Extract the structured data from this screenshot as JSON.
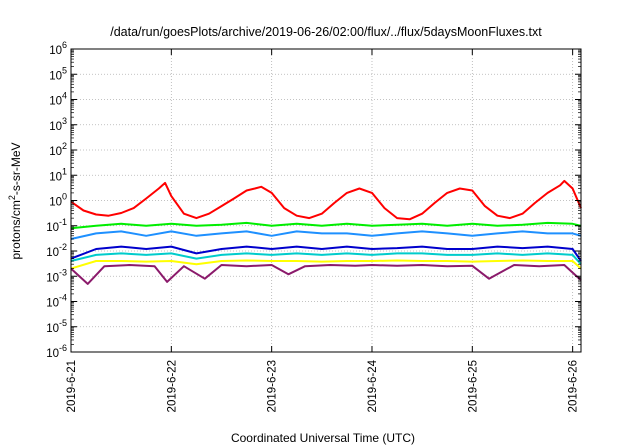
{
  "chart_data": {
    "type": "line",
    "title": "/data/run/goesPlots/archive/2019-06-26/02:00/flux/../flux/5daysMoonFluxes.txt",
    "xlabel": "Coordinated Universal Time (UTC)",
    "ylabel_parts": [
      "protons/cm",
      "2",
      "-s-sr-MeV"
    ],
    "y_scale": "log",
    "ylim": [
      1e-06,
      1000000.0
    ],
    "y_ticks": [
      {
        "base": "10",
        "exp": "-6"
      },
      {
        "base": "10",
        "exp": "-5"
      },
      {
        "base": "10",
        "exp": "-4"
      },
      {
        "base": "10",
        "exp": "-3"
      },
      {
        "base": "10",
        "exp": "-2"
      },
      {
        "base": "10",
        "exp": "-1"
      },
      {
        "base": "10",
        "exp": "0"
      },
      {
        "base": "10",
        "exp": "1"
      },
      {
        "base": "10",
        "exp": "2"
      },
      {
        "base": "10",
        "exp": "3"
      },
      {
        "base": "10",
        "exp": "4"
      },
      {
        "base": "10",
        "exp": "5"
      },
      {
        "base": "10",
        "exp": "6"
      }
    ],
    "x_ticks": [
      "2019-6-21",
      "2019-6-22",
      "2019-6-23",
      "2019-6-24",
      "2019-6-25",
      "2019-6-26"
    ],
    "xlim": [
      "2019-06-21T00:00",
      "2019-06-26T02:00"
    ],
    "grid": true,
    "legend": "none",
    "series": [
      {
        "color": "#ff0000",
        "points": [
          [
            "2019-06-21T00:00",
            0.9
          ],
          [
            "2019-06-21T03:00",
            0.4
          ],
          [
            "2019-06-21T06:00",
            0.28
          ],
          [
            "2019-06-21T09:00",
            0.25
          ],
          [
            "2019-06-21T12:00",
            0.32
          ],
          [
            "2019-06-21T15:00",
            0.5
          ],
          [
            "2019-06-21T18:00",
            1.2
          ],
          [
            "2019-06-21T21:00",
            3.0
          ],
          [
            "2019-06-21T22:30",
            5.0
          ],
          [
            "2019-06-22T00:00",
            1.5
          ],
          [
            "2019-06-22T03:00",
            0.3
          ],
          [
            "2019-06-22T06:00",
            0.2
          ],
          [
            "2019-06-22T09:00",
            0.3
          ],
          [
            "2019-06-22T12:00",
            0.6
          ],
          [
            "2019-06-22T15:00",
            1.2
          ],
          [
            "2019-06-22T18:00",
            2.5
          ],
          [
            "2019-06-22T20:00",
            3.0
          ],
          [
            "2019-06-22T21:30",
            3.5
          ],
          [
            "2019-06-23T00:00",
            2.0
          ],
          [
            "2019-06-23T03:00",
            0.5
          ],
          [
            "2019-06-23T06:00",
            0.25
          ],
          [
            "2019-06-23T09:00",
            0.2
          ],
          [
            "2019-06-23T12:00",
            0.3
          ],
          [
            "2019-06-23T15:00",
            0.8
          ],
          [
            "2019-06-23T18:00",
            2.0
          ],
          [
            "2019-06-23T21:00",
            3.0
          ],
          [
            "2019-06-24T00:00",
            2.0
          ],
          [
            "2019-06-24T03:00",
            0.5
          ],
          [
            "2019-06-24T06:00",
            0.2
          ],
          [
            "2019-06-24T09:00",
            0.18
          ],
          [
            "2019-06-24T12:00",
            0.3
          ],
          [
            "2019-06-24T15:00",
            0.8
          ],
          [
            "2019-06-24T18:00",
            2.0
          ],
          [
            "2019-06-24T21:00",
            3.0
          ],
          [
            "2019-06-25T00:00",
            2.5
          ],
          [
            "2019-06-25T03:00",
            0.6
          ],
          [
            "2019-06-25T06:00",
            0.25
          ],
          [
            "2019-06-25T09:00",
            0.2
          ],
          [
            "2019-06-25T12:00",
            0.3
          ],
          [
            "2019-06-25T15:00",
            0.8
          ],
          [
            "2019-06-25T18:00",
            2.0
          ],
          [
            "2019-06-25T21:00",
            4.0
          ],
          [
            "2019-06-25T22:00",
            6.0
          ],
          [
            "2019-06-26T00:00",
            3.0
          ],
          [
            "2019-06-26T02:00",
            0.5
          ]
        ]
      },
      {
        "color": "#00ee00",
        "points": [
          [
            "2019-06-21T00:00",
            0.08
          ],
          [
            "2019-06-21T06:00",
            0.1
          ],
          [
            "2019-06-21T12:00",
            0.12
          ],
          [
            "2019-06-21T18:00",
            0.1
          ],
          [
            "2019-06-22T00:00",
            0.12
          ],
          [
            "2019-06-22T06:00",
            0.1
          ],
          [
            "2019-06-22T12:00",
            0.11
          ],
          [
            "2019-06-22T18:00",
            0.13
          ],
          [
            "2019-06-23T00:00",
            0.1
          ],
          [
            "2019-06-23T06:00",
            0.12
          ],
          [
            "2019-06-23T12:00",
            0.1
          ],
          [
            "2019-06-23T18:00",
            0.12
          ],
          [
            "2019-06-24T00:00",
            0.1
          ],
          [
            "2019-06-24T06:00",
            0.11
          ],
          [
            "2019-06-24T12:00",
            0.12
          ],
          [
            "2019-06-24T18:00",
            0.1
          ],
          [
            "2019-06-25T00:00",
            0.12
          ],
          [
            "2019-06-25T06:00",
            0.1
          ],
          [
            "2019-06-25T12:00",
            0.11
          ],
          [
            "2019-06-25T18:00",
            0.13
          ],
          [
            "2019-06-26T00:00",
            0.12
          ],
          [
            "2019-06-26T02:00",
            0.1
          ]
        ]
      },
      {
        "color": "#1e90ff",
        "points": [
          [
            "2019-06-21T00:00",
            0.03
          ],
          [
            "2019-06-21T06:00",
            0.05
          ],
          [
            "2019-06-21T12:00",
            0.06
          ],
          [
            "2019-06-21T18:00",
            0.04
          ],
          [
            "2019-06-22T00:00",
            0.06
          ],
          [
            "2019-06-22T06:00",
            0.04
          ],
          [
            "2019-06-22T12:00",
            0.05
          ],
          [
            "2019-06-22T18:00",
            0.06
          ],
          [
            "2019-06-23T00:00",
            0.04
          ],
          [
            "2019-06-23T06:00",
            0.06
          ],
          [
            "2019-06-23T12:00",
            0.05
          ],
          [
            "2019-06-23T18:00",
            0.05
          ],
          [
            "2019-06-24T00:00",
            0.04
          ],
          [
            "2019-06-24T06:00",
            0.05
          ],
          [
            "2019-06-24T12:00",
            0.06
          ],
          [
            "2019-06-24T18:00",
            0.05
          ],
          [
            "2019-06-25T00:00",
            0.04
          ],
          [
            "2019-06-25T06:00",
            0.05
          ],
          [
            "2019-06-25T12:00",
            0.06
          ],
          [
            "2019-06-25T18:00",
            0.05
          ],
          [
            "2019-06-26T00:00",
            0.05
          ],
          [
            "2019-06-26T02:00",
            0.04
          ]
        ]
      },
      {
        "color": "#0000cc",
        "points": [
          [
            "2019-06-21T00:00",
            0.005
          ],
          [
            "2019-06-21T06:00",
            0.012
          ],
          [
            "2019-06-21T12:00",
            0.015
          ],
          [
            "2019-06-21T18:00",
            0.012
          ],
          [
            "2019-06-22T00:00",
            0.015
          ],
          [
            "2019-06-22T06:00",
            0.008
          ],
          [
            "2019-06-22T12:00",
            0.012
          ],
          [
            "2019-06-22T18:00",
            0.015
          ],
          [
            "2019-06-23T00:00",
            0.012
          ],
          [
            "2019-06-23T06:00",
            0.015
          ],
          [
            "2019-06-23T12:00",
            0.012
          ],
          [
            "2019-06-23T18:00",
            0.015
          ],
          [
            "2019-06-24T00:00",
            0.012
          ],
          [
            "2019-06-24T06:00",
            0.013
          ],
          [
            "2019-06-24T12:00",
            0.015
          ],
          [
            "2019-06-24T18:00",
            0.012
          ],
          [
            "2019-06-25T00:00",
            0.012
          ],
          [
            "2019-06-25T06:00",
            0.015
          ],
          [
            "2019-06-25T12:00",
            0.013
          ],
          [
            "2019-06-25T18:00",
            0.015
          ],
          [
            "2019-06-26T00:00",
            0.012
          ],
          [
            "2019-06-26T02:00",
            0.004
          ]
        ]
      },
      {
        "color": "#00cccc",
        "points": [
          [
            "2019-06-21T00:00",
            0.004
          ],
          [
            "2019-06-21T06:00",
            0.007
          ],
          [
            "2019-06-21T12:00",
            0.008
          ],
          [
            "2019-06-21T18:00",
            0.007
          ],
          [
            "2019-06-22T00:00",
            0.008
          ],
          [
            "2019-06-22T06:00",
            0.005
          ],
          [
            "2019-06-22T12:00",
            0.007
          ],
          [
            "2019-06-22T18:00",
            0.008
          ],
          [
            "2019-06-23T00:00",
            0.007
          ],
          [
            "2019-06-23T06:00",
            0.008
          ],
          [
            "2019-06-23T12:00",
            0.007
          ],
          [
            "2019-06-23T18:00",
            0.008
          ],
          [
            "2019-06-24T00:00",
            0.007
          ],
          [
            "2019-06-24T06:00",
            0.008
          ],
          [
            "2019-06-24T12:00",
            0.008
          ],
          [
            "2019-06-24T18:00",
            0.007
          ],
          [
            "2019-06-25T00:00",
            0.007
          ],
          [
            "2019-06-25T06:00",
            0.008
          ],
          [
            "2019-06-25T12:00",
            0.007
          ],
          [
            "2019-06-25T18:00",
            0.008
          ],
          [
            "2019-06-26T00:00",
            0.007
          ],
          [
            "2019-06-26T02:00",
            0.003
          ]
        ]
      },
      {
        "color": "#ffff00",
        "points": [
          [
            "2019-06-21T00:00",
            0.002
          ],
          [
            "2019-06-21T06:00",
            0.004
          ],
          [
            "2019-06-21T12:00",
            0.004
          ],
          [
            "2019-06-21T18:00",
            0.0038
          ],
          [
            "2019-06-22T00:00",
            0.004
          ],
          [
            "2019-06-22T06:00",
            0.003
          ],
          [
            "2019-06-22T12:00",
            0.004
          ],
          [
            "2019-06-22T18:00",
            0.0042
          ],
          [
            "2019-06-23T00:00",
            0.004
          ],
          [
            "2019-06-23T06:00",
            0.004
          ],
          [
            "2019-06-23T12:00",
            0.0038
          ],
          [
            "2019-06-23T18:00",
            0.004
          ],
          [
            "2019-06-24T00:00",
            0.004
          ],
          [
            "2019-06-24T06:00",
            0.0042
          ],
          [
            "2019-06-24T12:00",
            0.004
          ],
          [
            "2019-06-24T18:00",
            0.004
          ],
          [
            "2019-06-25T00:00",
            0.0038
          ],
          [
            "2019-06-25T06:00",
            0.004
          ],
          [
            "2019-06-25T12:00",
            0.0042
          ],
          [
            "2019-06-25T18:00",
            0.004
          ],
          [
            "2019-06-26T00:00",
            0.004
          ],
          [
            "2019-06-26T02:00",
            0.002
          ]
        ]
      },
      {
        "color": "#8b1a6b",
        "points": [
          [
            "2019-06-21T00:00",
            0.002
          ],
          [
            "2019-06-21T04:00",
            0.0005
          ],
          [
            "2019-06-21T08:00",
            0.0025
          ],
          [
            "2019-06-21T14:00",
            0.0028
          ],
          [
            "2019-06-21T20:00",
            0.0025
          ],
          [
            "2019-06-21T23:00",
            0.0006
          ],
          [
            "2019-06-22T03:00",
            0.0025
          ],
          [
            "2019-06-22T08:00",
            0.0008
          ],
          [
            "2019-06-22T12:00",
            0.0028
          ],
          [
            "2019-06-22T18:00",
            0.0025
          ],
          [
            "2019-06-23T00:00",
            0.0028
          ],
          [
            "2019-06-23T04:00",
            0.0012
          ],
          [
            "2019-06-23T08:00",
            0.0025
          ],
          [
            "2019-06-23T14:00",
            0.0028
          ],
          [
            "2019-06-23T20:00",
            0.0026
          ],
          [
            "2019-06-24T00:00",
            0.0028
          ],
          [
            "2019-06-24T06:00",
            0.0026
          ],
          [
            "2019-06-24T12:00",
            0.0028
          ],
          [
            "2019-06-24T18:00",
            0.0025
          ],
          [
            "2019-06-25T00:00",
            0.0026
          ],
          [
            "2019-06-25T04:00",
            0.0008
          ],
          [
            "2019-06-25T10:00",
            0.0028
          ],
          [
            "2019-06-25T16:00",
            0.0025
          ],
          [
            "2019-06-25T22:00",
            0.0028
          ],
          [
            "2019-06-26T02:00",
            0.0007
          ]
        ]
      }
    ]
  }
}
